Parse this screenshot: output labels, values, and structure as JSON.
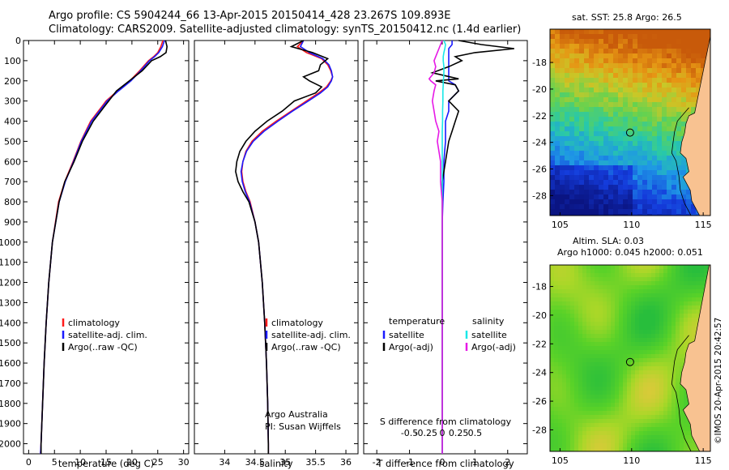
{
  "header": {
    "line1": "Argo profile: CS 5904244_66 13-Apr-2015 20150414_428 23.267S 109.893E",
    "line2": "Climatology: CARS2009. Satellite-adjusted climatology: synTS_20150412.nc (1.4d earlier)"
  },
  "map_titles": {
    "sst": "sat. SST: 25.8 Argo: 26.5",
    "sla_line1": "Altim. SLA: 0.03",
    "sla_line2": "Argo h1000: 0.045 h2000: 0.051"
  },
  "watermark": "©IMOS 20-Apr-2015 20:42:57",
  "colors": {
    "climatology": "#ff1a1a",
    "satellite": "#1a1aff",
    "argo": "#000000",
    "sal_satellite": "#19e8e8",
    "sal_argo": "#e619e6"
  },
  "chart_data": [
    {
      "type": "line",
      "panel": "temperature",
      "xlabel": "temperature (deg C)",
      "ylabel": "",
      "xlim": [
        -1,
        31
      ],
      "ylim": [
        2050,
        0
      ],
      "xticks": [
        0,
        5,
        10,
        15,
        20,
        25,
        30
      ],
      "yticks": [
        0,
        100,
        200,
        300,
        400,
        500,
        600,
        700,
        800,
        900,
        1000,
        1100,
        1200,
        1300,
        1400,
        1500,
        1600,
        1700,
        1800,
        1900,
        2000
      ],
      "legend": [
        "climatology",
        "satellite-adj. clim.",
        "Argo(..raw -QC)"
      ],
      "depth": [
        0,
        30,
        60,
        80,
        100,
        150,
        200,
        250,
        300,
        400,
        500,
        600,
        700,
        800,
        1000,
        1200,
        1400,
        1600,
        1800,
        2000,
        2050
      ],
      "series": [
        {
          "name": "climatology",
          "values": [
            26.0,
            25.6,
            25.0,
            24.2,
            23.2,
            21.5,
            19.6,
            17.2,
            15.0,
            12.0,
            10.1,
            8.6,
            7.0,
            5.8,
            4.6,
            3.9,
            3.4,
            3.0,
            2.7,
            2.4,
            2.3
          ]
        },
        {
          "name": "satellite-adj. clim.",
          "values": [
            26.3,
            25.9,
            25.2,
            24.4,
            23.4,
            21.7,
            19.8,
            17.4,
            15.2,
            12.2,
            10.2,
            8.7,
            7.1,
            5.9,
            4.6,
            3.9,
            3.4,
            3.0,
            2.7,
            2.4,
            2.3
          ]
        },
        {
          "name": "Argo(..raw -QC)",
          "values": [
            26.5,
            26.8,
            26.6,
            25.5,
            23.8,
            22.0,
            19.5,
            17.0,
            15.5,
            12.5,
            10.4,
            8.8,
            7.0,
            5.9,
            4.6,
            3.9,
            3.4,
            3.0,
            2.7,
            2.4,
            2.4
          ]
        }
      ]
    },
    {
      "type": "line",
      "panel": "salinity",
      "xlabel": "salinity",
      "xlim": [
        33.5,
        36.2
      ],
      "ylim": [
        2050,
        0
      ],
      "xticks": [
        34,
        34.5,
        35,
        35.5,
        36
      ],
      "legend": [
        "climatology",
        "satellite-adj. clim.",
        "Argo(..raw -QC)"
      ],
      "annotation": [
        "Argo Australia",
        "PI: Susan Wijffels"
      ],
      "depth": [
        0,
        30,
        60,
        90,
        120,
        150,
        180,
        200,
        230,
        260,
        300,
        350,
        400,
        450,
        500,
        550,
        600,
        650,
        700,
        750,
        800,
        900,
        1000,
        1200,
        1400,
        1600,
        1800,
        2000,
        2050
      ],
      "series": [
        {
          "name": "climatology",
          "values": [
            35.3,
            35.2,
            35.35,
            35.6,
            35.7,
            35.75,
            35.78,
            35.75,
            35.68,
            35.55,
            35.35,
            35.1,
            34.85,
            34.62,
            34.45,
            34.35,
            34.3,
            34.28,
            34.3,
            34.35,
            34.42,
            34.5,
            34.56,
            34.62,
            34.66,
            34.69,
            34.71,
            34.72,
            34.72
          ]
        },
        {
          "name": "satellite-adj. clim.",
          "values": [
            35.3,
            35.25,
            35.4,
            35.62,
            35.72,
            35.76,
            35.78,
            35.76,
            35.7,
            35.58,
            35.38,
            35.12,
            34.88,
            34.65,
            34.47,
            34.36,
            34.3,
            34.27,
            34.29,
            34.34,
            34.41,
            34.5,
            34.56,
            34.62,
            34.66,
            34.69,
            34.71,
            34.72,
            34.72
          ]
        },
        {
          "name": "Argo(..raw -QC)",
          "values": [
            35.3,
            35.1,
            35.45,
            35.7,
            35.58,
            35.55,
            35.3,
            35.4,
            35.6,
            35.5,
            35.15,
            34.95,
            34.7,
            34.5,
            34.35,
            34.25,
            34.2,
            34.18,
            34.22,
            34.3,
            34.4,
            34.5,
            34.56,
            34.62,
            34.66,
            34.69,
            34.71,
            34.72,
            34.72
          ]
        }
      ]
    },
    {
      "type": "line",
      "panel": "difference",
      "xlabel": "T difference from climatology",
      "x2label": "S difference from climatology",
      "xlim": [
        -2.4,
        2.6
      ],
      "ylim": [
        2050,
        0
      ],
      "xticks": [
        -2,
        -1,
        0,
        1,
        2
      ],
      "sticks": [
        -0.5,
        -0.25,
        0,
        0.25,
        0.5
      ],
      "slabels": [
        "-0.5",
        "-0.25",
        "0",
        "0.25",
        "0.5"
      ],
      "legend_temperature_title": "temperature",
      "legend_salinity_title": "salinity",
      "legend": [
        "satellite",
        "Argo(-adj)",
        "satellite",
        "Argo(-adj)"
      ],
      "depth": [
        0,
        20,
        40,
        60,
        80,
        100,
        130,
        160,
        190,
        200,
        220,
        250,
        300,
        350,
        400,
        450,
        500,
        600,
        700,
        800,
        900,
        1000,
        1200,
        1500,
        1800,
        2000,
        2050
      ],
      "series": [
        {
          "name": "temperature satellite",
          "values": [
            0.3,
            0.3,
            0.2,
            0.2,
            0.2,
            0.2,
            0.2,
            0.2,
            0.2,
            0.2,
            0.4,
            0.5,
            0.2,
            0.2,
            0.1,
            0.1,
            0.1,
            0.05,
            0.05,
            0.02,
            0.0,
            0.0,
            0.0,
            0.0,
            0.0,
            0.0,
            0.0
          ]
        },
        {
          "name": "temperature Argo(-adj)",
          "values": [
            0.5,
            1.2,
            2.2,
            1.0,
            0.4,
            0.6,
            0.2,
            -0.3,
            0.5,
            -0.2,
            0.4,
            0.5,
            0.2,
            0.5,
            0.4,
            0.3,
            0.2,
            0.1,
            0.0,
            0.0,
            0.0,
            0.0,
            0.0,
            0.0,
            0.0,
            0.0,
            0.0
          ]
        },
        {
          "name": "salinity satellite",
          "values": [
            0.05,
            0.1,
            0.08,
            0.05,
            0.03,
            0.03,
            0.05,
            0.05,
            0.04,
            0.03,
            0.03,
            0.02,
            0.02,
            0.01,
            0.01,
            0.0,
            0.0,
            0.0,
            0.0,
            0.0,
            0.0,
            0.0,
            0.0,
            0.0,
            0.0,
            0.0,
            0.0
          ]
        },
        {
          "name": "salinity Argo(-adj)",
          "values": [
            0.0,
            -0.05,
            -0.1,
            -0.15,
            -0.2,
            -0.25,
            -0.2,
            -0.25,
            -0.4,
            -0.35,
            -0.2,
            -0.25,
            -0.3,
            -0.25,
            -0.2,
            -0.1,
            -0.15,
            -0.05,
            -0.05,
            0.0,
            0.0,
            0.0,
            0.0,
            0.0,
            0.0,
            0.0,
            0.0
          ]
        }
      ]
    },
    {
      "type": "heatmap",
      "panel": "sst-map",
      "xlim": [
        104.3,
        115.5
      ],
      "ylim": [
        -29.5,
        -15.5
      ],
      "xticks": [
        105,
        110,
        115
      ],
      "yticks": [
        -18,
        -20,
        -22,
        -24,
        -26,
        -28
      ],
      "float_position": [
        109.893,
        -23.267
      ]
    },
    {
      "type": "heatmap",
      "panel": "sla-map",
      "xlim": [
        104.3,
        115.5
      ],
      "ylim": [
        -29.5,
        -16.5
      ],
      "xticks": [
        105,
        110,
        115
      ],
      "yticks": [
        -18,
        -20,
        -22,
        -24,
        -26,
        -28
      ],
      "float_position": [
        109.893,
        -23.267
      ]
    }
  ]
}
